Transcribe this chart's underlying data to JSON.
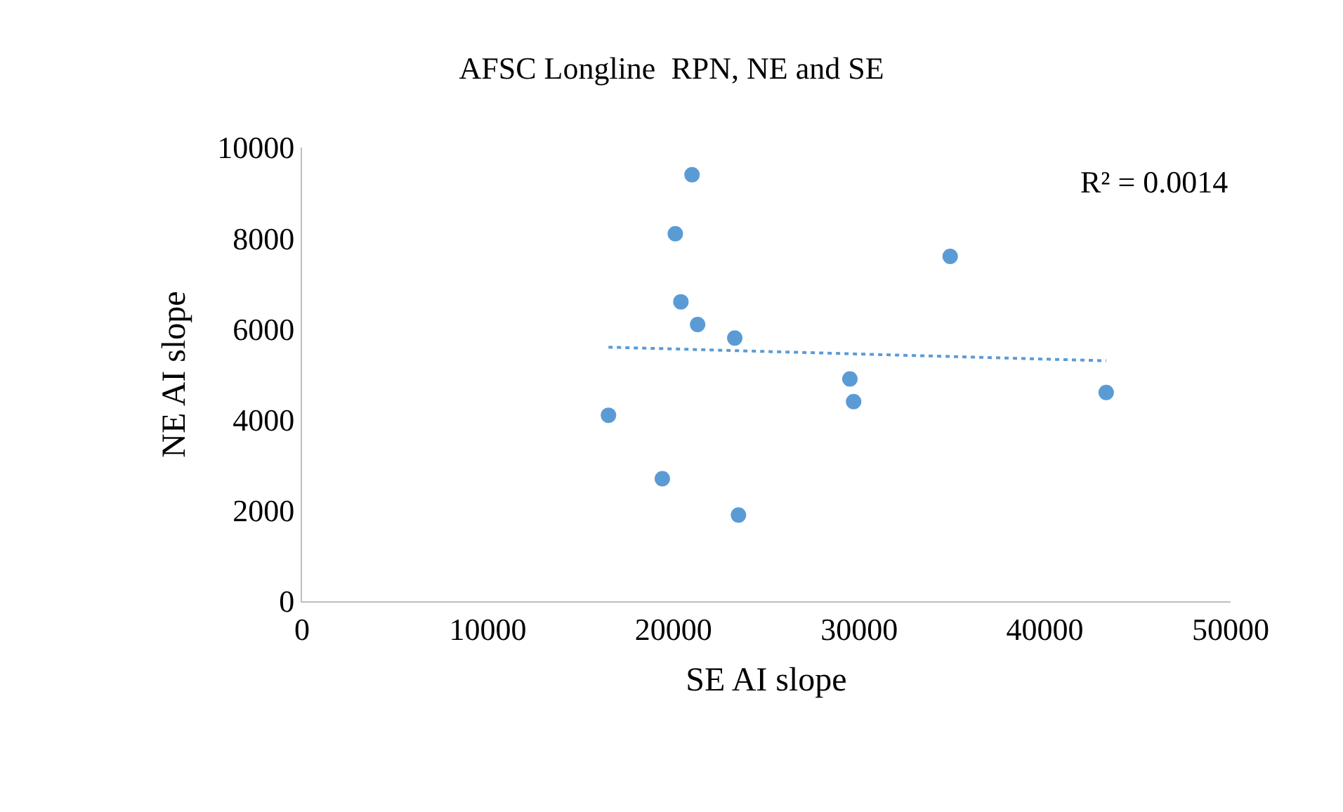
{
  "chart_data": {
    "type": "scatter",
    "title": "AFSC Longline  RPN, NE and SE",
    "xlabel": "SE AI slope",
    "ylabel": "NE AI slope",
    "series": [
      {
        "color": "#5b9bd5",
        "marker": "circle",
        "x": [
          21000,
          20100,
          34900,
          20400,
          21300,
          23300,
          29500,
          29700,
          43300,
          16500,
          19400,
          23500
        ],
        "values": [
          9400,
          8100,
          7600,
          6600,
          6100,
          5800,
          4900,
          4400,
          4600,
          4100,
          2700,
          1900
        ]
      },
      {
        "type": "line",
        "color": "#5b9bd5",
        "line_style": "dotted",
        "marker": "none",
        "x": [
          16500,
          43300
        ],
        "values": [
          5600,
          5300
        ]
      }
    ],
    "annotations": [
      "R² = 0.0014"
    ],
    "xlim": [
      0,
      50000
    ],
    "xticks": [
      0,
      10000,
      20000,
      30000,
      40000,
      50000
    ],
    "ylim": [
      0,
      10000
    ],
    "yticks": [
      0,
      2000,
      4000,
      6000,
      8000,
      10000
    ],
    "grid": false
  }
}
